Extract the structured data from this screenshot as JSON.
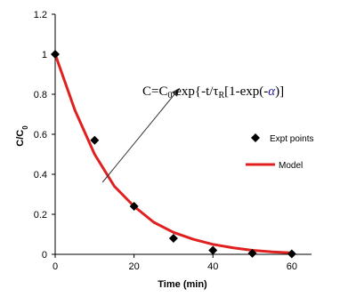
{
  "chart_data": {
    "type": "scatter",
    "xlabel": "Time (min)",
    "ylabel_main": "C/C",
    "ylabel_sub": "0",
    "xlim": [
      0,
      65
    ],
    "ylim": [
      0,
      1.2
    ],
    "xticks": [
      "0",
      "20",
      "40",
      "60"
    ],
    "yticks": [
      "0",
      "0.2",
      "0.4",
      "0.6",
      "0.8",
      "1",
      "1.2"
    ],
    "series": [
      {
        "name": "Expt points",
        "marker": "diamond",
        "color": "#000000",
        "x": [
          0,
          10,
          20,
          30,
          40,
          50,
          60
        ],
        "y": [
          1.0,
          0.57,
          0.24,
          0.08,
          0.02,
          0.005,
          0.002
        ]
      },
      {
        "name": "Model",
        "style": "line",
        "color": "#e0201f",
        "x": [
          0,
          5,
          10,
          15,
          20,
          25,
          30,
          35,
          40,
          45,
          50,
          55,
          60
        ],
        "y": [
          1.0,
          0.72,
          0.5,
          0.34,
          0.24,
          0.16,
          0.11,
          0.075,
          0.05,
          0.033,
          0.02,
          0.012,
          0.007
        ]
      }
    ],
    "annotation": {
      "parts": [
        {
          "t": "C=C",
          "style": "normal"
        },
        {
          "t": "0",
          "style": "sub"
        },
        {
          "t": " exp{-t/τ",
          "style": "normal"
        },
        {
          "t": "R",
          "style": "sub"
        },
        {
          "t": "[1-exp(-",
          "style": "normal"
        },
        {
          "t": "α",
          "style": "alpha"
        },
        {
          "t": ")]",
          "style": "normal"
        }
      ],
      "alpha_color": "#1a1aa8",
      "arrow_from": [
        12,
        0.36
      ],
      "arrow_to": [
        31.5,
        0.83
      ]
    },
    "legend_position": "right"
  }
}
